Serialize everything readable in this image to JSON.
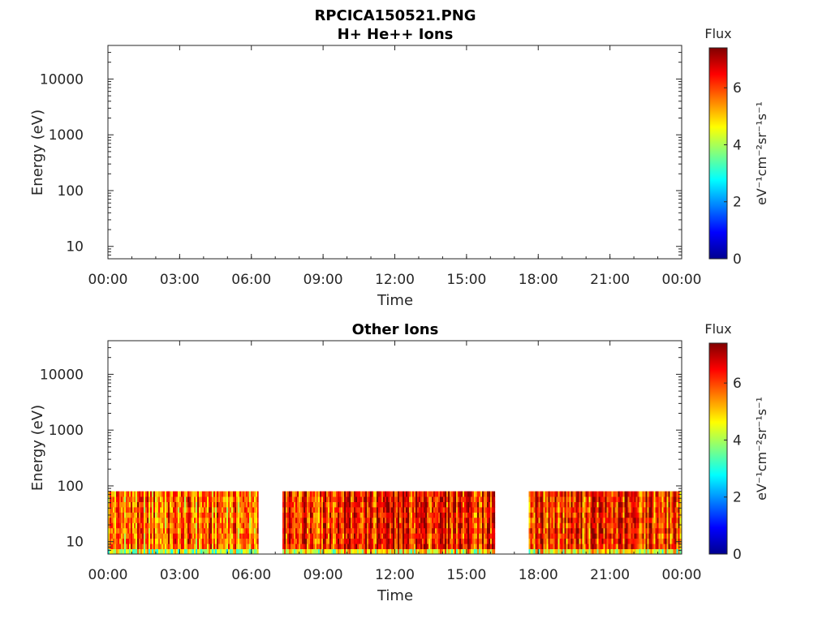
{
  "figure": {
    "title": "RPCICA150521.PNG"
  },
  "chart_data": [
    {
      "type": "heatmap",
      "title": "H+ He++ Ions",
      "xlabel": "Time",
      "ylabel": "Energy (eV)",
      "xticks": [
        "00:00",
        "03:00",
        "06:00",
        "09:00",
        "12:00",
        "15:00",
        "18:00",
        "21:00",
        "00:00"
      ],
      "xlim_hours": [
        0,
        24
      ],
      "y_scale": "log",
      "ylim": [
        6,
        40000
      ],
      "yticks": [
        10,
        100,
        1000,
        10000
      ],
      "ytick_labels": [
        "10",
        "100",
        "1000",
        "10000"
      ],
      "colorbar": {
        "title": "Flux",
        "label": "eV⁻¹cm⁻²sr⁻¹s⁻¹",
        "range": [
          0,
          7.4
        ],
        "ticks": [
          0,
          2,
          4,
          6
        ],
        "tick_labels": [
          "0",
          "2",
          "4",
          "6"
        ],
        "colormap": "jet"
      },
      "data_segments": []
    },
    {
      "type": "heatmap",
      "title": "Other Ions",
      "xlabel": "Time",
      "ylabel": "Energy (eV)",
      "xticks": [
        "00:00",
        "03:00",
        "06:00",
        "09:00",
        "12:00",
        "15:00",
        "18:00",
        "21:00",
        "00:00"
      ],
      "xlim_hours": [
        0,
        24
      ],
      "y_scale": "log",
      "ylim": [
        6,
        40000
      ],
      "yticks": [
        10,
        100,
        1000,
        10000
      ],
      "ytick_labels": [
        "10",
        "100",
        "1000",
        "10000"
      ],
      "colorbar": {
        "title": "Flux",
        "label": "eV⁻¹cm⁻²sr⁻¹s⁻¹",
        "range": [
          0,
          7.4
        ],
        "ticks": [
          0,
          2,
          4,
          6
        ],
        "tick_labels": [
          "0",
          "2",
          "4",
          "6"
        ],
        "colormap": "jet"
      },
      "energy_range_eV": [
        6,
        80
      ],
      "data_segments": [
        {
          "start_hour": 0.0,
          "end_hour": 6.3,
          "typical_flux": 5.6
        },
        {
          "start_hour": 7.3,
          "end_hour": 16.2,
          "typical_flux": 6.4
        },
        {
          "start_hour": 17.6,
          "end_hour": 24.0,
          "typical_flux": 6.2
        }
      ]
    }
  ]
}
